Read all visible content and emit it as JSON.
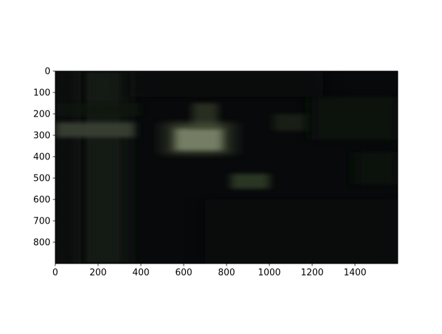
{
  "chart_data": {
    "type": "heatmap",
    "title": "",
    "xlabel": "",
    "ylabel": "",
    "xlim": [
      0,
      1600
    ],
    "ylim": [
      900,
      0
    ],
    "x_ticks": [
      0,
      200,
      400,
      600,
      800,
      1000,
      1200,
      1400
    ],
    "y_ticks": [
      0,
      100,
      200,
      300,
      400,
      500,
      600,
      700,
      800
    ],
    "grid": false,
    "content": "dark, motion-blurred night photograph displayed as an image (imshow)",
    "colors": {
      "image_base": "#07090a",
      "pillar": "#171d16",
      "highlight": "#8a9478",
      "foliage": "#2a3424"
    }
  }
}
